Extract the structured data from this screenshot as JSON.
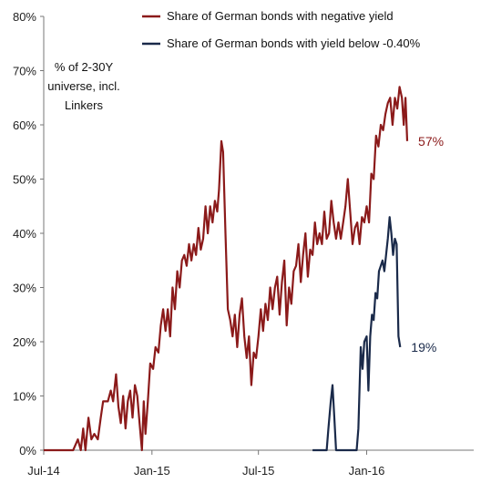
{
  "chart_data": {
    "type": "line",
    "annotation": [
      "% of 2-30Y",
      "universe, incl.",
      "Linkers"
    ],
    "x_axis": {
      "range": [
        "2014-07-01",
        "2016-07-01"
      ],
      "ticks": [
        {
          "label": "Jul-14",
          "date": "2014-07-01"
        },
        {
          "label": "Jan-15",
          "date": "2015-01-01"
        },
        {
          "label": "Jul-15",
          "date": "2015-07-01"
        },
        {
          "label": "Jan-16",
          "date": "2016-01-01"
        }
      ]
    },
    "y_axis": {
      "range": [
        0,
        80
      ],
      "ticks": [
        {
          "label": "0%",
          "value": 0
        },
        {
          "label": "10%",
          "value": 10
        },
        {
          "label": "20%",
          "value": 20
        },
        {
          "label": "30%",
          "value": 30
        },
        {
          "label": "40%",
          "value": 40
        },
        {
          "label": "50%",
          "value": 50
        },
        {
          "label": "60%",
          "value": 60
        },
        {
          "label": "70%",
          "value": 70
        },
        {
          "label": "80%",
          "value": 80
        }
      ]
    },
    "grid": false,
    "legend_position": "top",
    "series": [
      {
        "name": "Share of German bonds with negative yield",
        "color": "#8b1a1a",
        "end_label": "57%",
        "points": [
          [
            "2014-07-01",
            0
          ],
          [
            "2014-08-20",
            0
          ],
          [
            "2014-08-28",
            2
          ],
          [
            "2014-09-02",
            0
          ],
          [
            "2014-09-06",
            4
          ],
          [
            "2014-09-10",
            0
          ],
          [
            "2014-09-15",
            6
          ],
          [
            "2014-09-20",
            2
          ],
          [
            "2014-09-25",
            3
          ],
          [
            "2014-10-01",
            2
          ],
          [
            "2014-10-06",
            6
          ],
          [
            "2014-10-10",
            9
          ],
          [
            "2014-10-18",
            9
          ],
          [
            "2014-10-23",
            11
          ],
          [
            "2014-10-27",
            9
          ],
          [
            "2014-11-01",
            14
          ],
          [
            "2014-11-05",
            8
          ],
          [
            "2014-11-09",
            5
          ],
          [
            "2014-11-13",
            10
          ],
          [
            "2014-11-17",
            4
          ],
          [
            "2014-11-21",
            9
          ],
          [
            "2014-11-25",
            11
          ],
          [
            "2014-11-29",
            6
          ],
          [
            "2014-12-03",
            12
          ],
          [
            "2014-12-07",
            10
          ],
          [
            "2014-12-11",
            5
          ],
          [
            "2014-12-15",
            0
          ],
          [
            "2014-12-18",
            9
          ],
          [
            "2014-12-21",
            3
          ],
          [
            "2014-12-25",
            9
          ],
          [
            "2014-12-29",
            16
          ],
          [
            "2015-01-03",
            15
          ],
          [
            "2015-01-07",
            19
          ],
          [
            "2015-01-12",
            18
          ],
          [
            "2015-01-16",
            23
          ],
          [
            "2015-01-20",
            26
          ],
          [
            "2015-01-24",
            22
          ],
          [
            "2015-01-28",
            26
          ],
          [
            "2015-02-01",
            21
          ],
          [
            "2015-02-05",
            30
          ],
          [
            "2015-02-09",
            26
          ],
          [
            "2015-02-13",
            33
          ],
          [
            "2015-02-17",
            30
          ],
          [
            "2015-02-21",
            35
          ],
          [
            "2015-02-25",
            36
          ],
          [
            "2015-03-01",
            34
          ],
          [
            "2015-03-05",
            38
          ],
          [
            "2015-03-09",
            35
          ],
          [
            "2015-03-13",
            38
          ],
          [
            "2015-03-17",
            36
          ],
          [
            "2015-03-21",
            41
          ],
          [
            "2015-03-25",
            37
          ],
          [
            "2015-03-29",
            39
          ],
          [
            "2015-04-02",
            45
          ],
          [
            "2015-04-06",
            40
          ],
          [
            "2015-04-10",
            45
          ],
          [
            "2015-04-14",
            42
          ],
          [
            "2015-04-18",
            46
          ],
          [
            "2015-04-22",
            44
          ],
          [
            "2015-04-25",
            48
          ],
          [
            "2015-04-29",
            57
          ],
          [
            "2015-05-02",
            55
          ],
          [
            "2015-05-06",
            40
          ],
          [
            "2015-05-10",
            26
          ],
          [
            "2015-05-14",
            24
          ],
          [
            "2015-05-18",
            21
          ],
          [
            "2015-05-22",
            25
          ],
          [
            "2015-05-26",
            19
          ],
          [
            "2015-05-30",
            25
          ],
          [
            "2015-06-03",
            28
          ],
          [
            "2015-06-07",
            21
          ],
          [
            "2015-06-11",
            17
          ],
          [
            "2015-06-15",
            21
          ],
          [
            "2015-06-19",
            12
          ],
          [
            "2015-06-23",
            18
          ],
          [
            "2015-06-27",
            17
          ],
          [
            "2015-07-01",
            21
          ],
          [
            "2015-07-05",
            26
          ],
          [
            "2015-07-09",
            22
          ],
          [
            "2015-07-13",
            27
          ],
          [
            "2015-07-17",
            24
          ],
          [
            "2015-07-21",
            30
          ],
          [
            "2015-07-25",
            26
          ],
          [
            "2015-07-29",
            30
          ],
          [
            "2015-08-02",
            32
          ],
          [
            "2015-08-06",
            25
          ],
          [
            "2015-08-10",
            31
          ],
          [
            "2015-08-14",
            35
          ],
          [
            "2015-08-18",
            23
          ],
          [
            "2015-08-22",
            30
          ],
          [
            "2015-08-26",
            27
          ],
          [
            "2015-08-30",
            33
          ],
          [
            "2015-09-03",
            34
          ],
          [
            "2015-09-07",
            38
          ],
          [
            "2015-09-11",
            31
          ],
          [
            "2015-09-15",
            36
          ],
          [
            "2015-09-19",
            40
          ],
          [
            "2015-09-23",
            32
          ],
          [
            "2015-09-27",
            37
          ],
          [
            "2015-10-01",
            36
          ],
          [
            "2015-10-05",
            42
          ],
          [
            "2015-10-09",
            38
          ],
          [
            "2015-10-13",
            40
          ],
          [
            "2015-10-17",
            38
          ],
          [
            "2015-10-21",
            44
          ],
          [
            "2015-10-25",
            39
          ],
          [
            "2015-10-29",
            40
          ],
          [
            "2015-11-02",
            46
          ],
          [
            "2015-11-06",
            42
          ],
          [
            "2015-11-10",
            39
          ],
          [
            "2015-11-14",
            42
          ],
          [
            "2015-11-18",
            39
          ],
          [
            "2015-11-22",
            42
          ],
          [
            "2015-11-26",
            45
          ],
          [
            "2015-11-30",
            50
          ],
          [
            "2015-12-04",
            44
          ],
          [
            "2015-12-08",
            38
          ],
          [
            "2015-12-12",
            41
          ],
          [
            "2015-12-16",
            42
          ],
          [
            "2015-12-20",
            38
          ],
          [
            "2015-12-24",
            43
          ],
          [
            "2015-12-28",
            42
          ],
          [
            "2016-01-01",
            45
          ],
          [
            "2016-01-05",
            42
          ],
          [
            "2016-01-09",
            51
          ],
          [
            "2016-01-13",
            50
          ],
          [
            "2016-01-17",
            58
          ],
          [
            "2016-01-21",
            56
          ],
          [
            "2016-01-25",
            60
          ],
          [
            "2016-01-29",
            59
          ],
          [
            "2016-02-02",
            62
          ],
          [
            "2016-02-06",
            64
          ],
          [
            "2016-02-10",
            65
          ],
          [
            "2016-02-14",
            60
          ],
          [
            "2016-02-18",
            65
          ],
          [
            "2016-02-22",
            63
          ],
          [
            "2016-02-26",
            67
          ],
          [
            "2016-03-01",
            65
          ],
          [
            "2016-03-04",
            60
          ],
          [
            "2016-03-07",
            65
          ],
          [
            "2016-03-10",
            57
          ]
        ]
      },
      {
        "name": "Share of German bonds with yield below -0.40%",
        "color": "#1a2a4a",
        "end_label": "19%",
        "points": [
          [
            "2015-10-01",
            0
          ],
          [
            "2015-10-25",
            0
          ],
          [
            "2015-10-28",
            4
          ],
          [
            "2015-11-01",
            9
          ],
          [
            "2015-11-04",
            12
          ],
          [
            "2015-11-07",
            6
          ],
          [
            "2015-11-10",
            0
          ],
          [
            "2015-12-15",
            0
          ],
          [
            "2015-12-18",
            4
          ],
          [
            "2015-12-22",
            19
          ],
          [
            "2015-12-25",
            15
          ],
          [
            "2015-12-28",
            20
          ],
          [
            "2016-01-01",
            21
          ],
          [
            "2016-01-04",
            11
          ],
          [
            "2016-01-07",
            21
          ],
          [
            "2016-01-10",
            25
          ],
          [
            "2016-01-13",
            24
          ],
          [
            "2016-01-16",
            29
          ],
          [
            "2016-01-19",
            28
          ],
          [
            "2016-01-22",
            33
          ],
          [
            "2016-01-25",
            34
          ],
          [
            "2016-01-28",
            35
          ],
          [
            "2016-01-31",
            33
          ],
          [
            "2016-02-03",
            36
          ],
          [
            "2016-02-06",
            39
          ],
          [
            "2016-02-09",
            43
          ],
          [
            "2016-02-12",
            40
          ],
          [
            "2016-02-15",
            36
          ],
          [
            "2016-02-18",
            39
          ],
          [
            "2016-02-21",
            38
          ],
          [
            "2016-02-24",
            21
          ],
          [
            "2016-02-27",
            19
          ]
        ]
      }
    ]
  }
}
